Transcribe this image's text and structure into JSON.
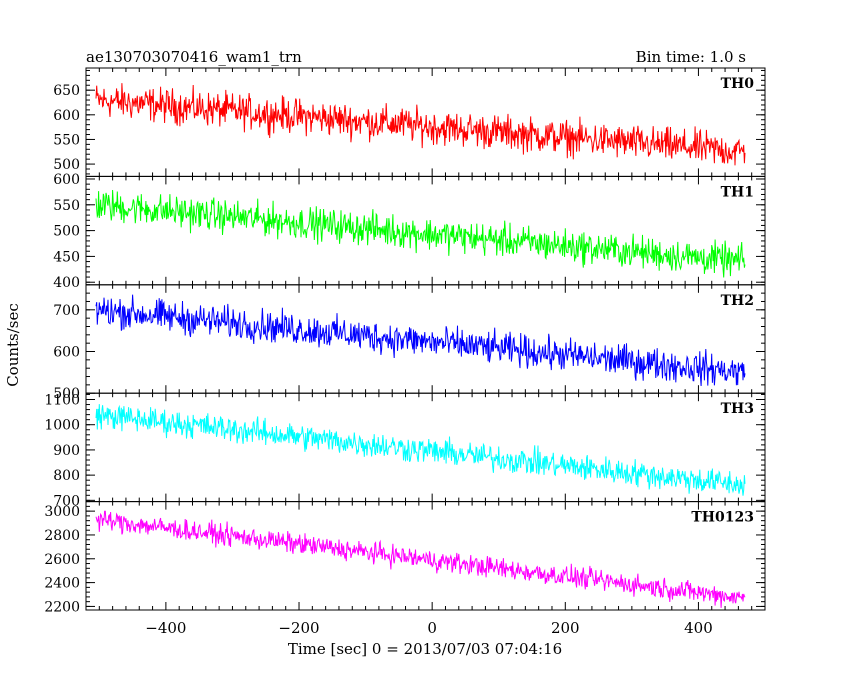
{
  "chart_data": {
    "type": "line",
    "title": "ae130703070416_wam1_trn",
    "subtitle": "Bin time: 1.0 s",
    "xlabel": "Time [sec] 0 = 2013/07/03 07:04:16",
    "ylabel": "Counts/sec",
    "xlim": [
      -520,
      500
    ],
    "x_ticks": [
      -400,
      -200,
      0,
      200,
      400
    ],
    "x_range": [
      -505,
      470
    ],
    "grid": false,
    "panels": [
      {
        "name": "TH0",
        "color": "#ff0000",
        "ylim": [
          475,
          695
        ],
        "ticks": [
          500,
          550,
          600,
          650
        ],
        "start": 630,
        "end": 525,
        "noise": 30
      },
      {
        "name": "TH1",
        "color": "#00ff00",
        "ylim": [
          395,
          605
        ],
        "ticks": [
          400,
          450,
          500,
          550,
          600
        ],
        "start": 550,
        "end": 440,
        "noise": 27
      },
      {
        "name": "TH2",
        "color": "#0000ff",
        "ylim": [
          500,
          760
        ],
        "ticks": [
          500,
          600,
          700
        ],
        "start": 700,
        "end": 550,
        "noise": 33
      },
      {
        "name": "TH3",
        "color": "#00ffff",
        "ylim": [
          695,
          1125
        ],
        "ticks": [
          700,
          800,
          900,
          1000,
          1100
        ],
        "start": 1040,
        "end": 760,
        "noise": 45
      },
      {
        "name": "TH0123",
        "color": "#ff00ff",
        "ylim": [
          2170,
          3080
        ],
        "ticks": [
          2200,
          2400,
          2600,
          2800,
          3000
        ],
        "start": 2930,
        "end": 2270,
        "noise": 75
      }
    ]
  }
}
